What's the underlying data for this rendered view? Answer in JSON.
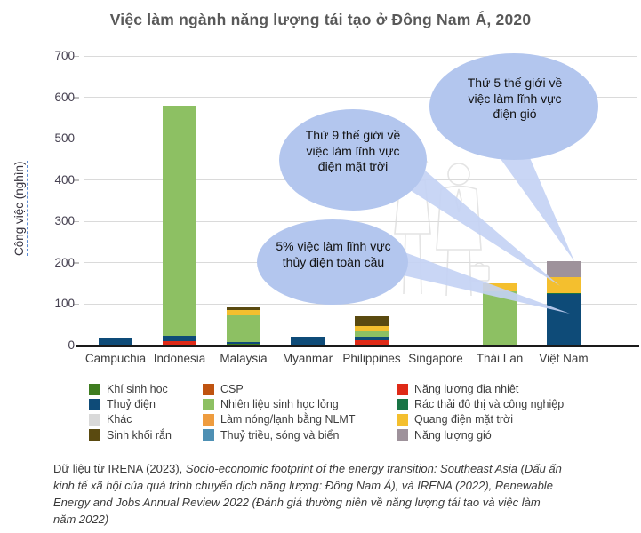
{
  "title": "Việc làm ngành năng lượng tái tạo ở Đông Nam Á, 2020",
  "chart_data": {
    "type": "bar",
    "stacked": true,
    "title": "Việc làm ngành năng lượng tái tạo ở Đông Nam Á, 2020",
    "xlabel": "",
    "ylabel": "Công việc (nghìn)",
    "ylim": [
      0,
      700
    ],
    "yticks": [
      0,
      100,
      200,
      300,
      400,
      500,
      600,
      700
    ],
    "grid": true,
    "legend_position": "bottom",
    "categories": [
      "Campuchia",
      "Indonesia",
      "Malaysia",
      "Myanmar",
      "Philippines",
      "Singapore",
      "Thái Lan",
      "Việt Nam"
    ],
    "series": [
      {
        "name": "Năng lượng địa nhiệt",
        "color": "#df2a17",
        "values": [
          0,
          10,
          0,
          0,
          12,
          0,
          0,
          0
        ]
      },
      {
        "name": "Khí sinh học",
        "color": "#3e7c1f",
        "values": [
          0,
          0,
          4,
          0,
          0,
          0,
          0,
          0
        ]
      },
      {
        "name": "Thuỷ điện",
        "color": "#0e4b78",
        "values": [
          18,
          13,
          5,
          22,
          9,
          0,
          0,
          124
        ]
      },
      {
        "name": "Rác thải đô thị và công nghiệp",
        "color": "#187445",
        "values": [
          0,
          0,
          0,
          0,
          0,
          0,
          0,
          3
        ]
      },
      {
        "name": "Nhiên liệu sinh học lỏng",
        "color": "#8dc063",
        "values": [
          0,
          557,
          64,
          0,
          13,
          0,
          130,
          0
        ]
      },
      {
        "name": "Quang điện mặt trời",
        "color": "#f4bf2e",
        "values": [
          0,
          0,
          12,
          0,
          13,
          3,
          21,
          38
        ]
      },
      {
        "name": "Sinh khối rắn",
        "color": "#5a4a10",
        "values": [
          0,
          0,
          8,
          0,
          23,
          0,
          0,
          0
        ]
      },
      {
        "name": "Năng lượng gió",
        "color": "#9e929b",
        "values": [
          0,
          0,
          0,
          0,
          0,
          0,
          0,
          40
        ]
      }
    ],
    "totals": {
      "Campuchia": 18,
      "Indonesia": 580,
      "Malaysia": 93,
      "Myanmar": 22,
      "Philippines": 70,
      "Singapore": 3,
      "Thái Lan": 151,
      "Việt Nam": 205
    },
    "legend_columns": [
      {
        "items": [
          {
            "label": "Khí sinh học",
            "color": "#3e7c1f"
          },
          {
            "label": "Thuỷ điện",
            "color": "#0e4b78"
          },
          {
            "label": "Khác",
            "color": "#d9d9d9"
          },
          {
            "label": "Sinh khối rắn",
            "color": "#5a4a10"
          }
        ]
      },
      {
        "items": [
          {
            "label": "CSP",
            "color": "#bf5310"
          },
          {
            "label": "Nhiên liệu sinh học lỏng",
            "color": "#8dc063"
          },
          {
            "label": "Làm nóng/lạnh bằng NLMT",
            "color": "#ee9c3f"
          },
          {
            "label": "Thuỷ triều, sóng và biển",
            "color": "#4e90b4"
          }
        ]
      },
      {
        "items": [
          {
            "label": "Năng lượng địa nhiệt",
            "color": "#df2a17"
          },
          {
            "label": "Rác thải đô thị và công nghiệp",
            "color": "#187445"
          },
          {
            "label": "Quang điện mặt trời",
            "color": "#f4bf2e"
          },
          {
            "label": "Năng lượng gió",
            "color": "#9e929b"
          }
        ]
      }
    ]
  },
  "annotations": [
    {
      "text": "Thứ 9 thế giới về việc làm lĩnh vực điện mặt trời",
      "target": "Quang điện mặt trời - Việt Nam"
    },
    {
      "text": "Thứ 5 thế giới về việc làm lĩnh vực điện gió",
      "target": "Năng lượng gió - Việt Nam"
    },
    {
      "text": "5% việc làm lĩnh vực thủy điện toàn cầu",
      "target": "Thuỷ điện - Việt Nam"
    }
  ],
  "colors": {
    "title": "#595959",
    "bubble": "#b3c6ee",
    "bubble_tail": "#c3d2f4",
    "gridline": "#dadada",
    "axis_line": "#1a1a1a",
    "watermark": "#e4e4e4"
  },
  "source_runs": [
    {
      "text": "Dữ liệu từ IRENA (2023), ",
      "italic": false
    },
    {
      "text": "Socio-economic footprint of the energy transition: Southeast Asia (Dấu ấn kinh tế xã hội của quá trình chuyển dịch năng lượng: Đông Nam Á), và IRENA (2022), Renewable Energy and Jobs Annual Review 2022 (Đánh giá thường niên về năng lượng tái tạo và việc làm năm 2022)",
      "italic": true
    }
  ]
}
